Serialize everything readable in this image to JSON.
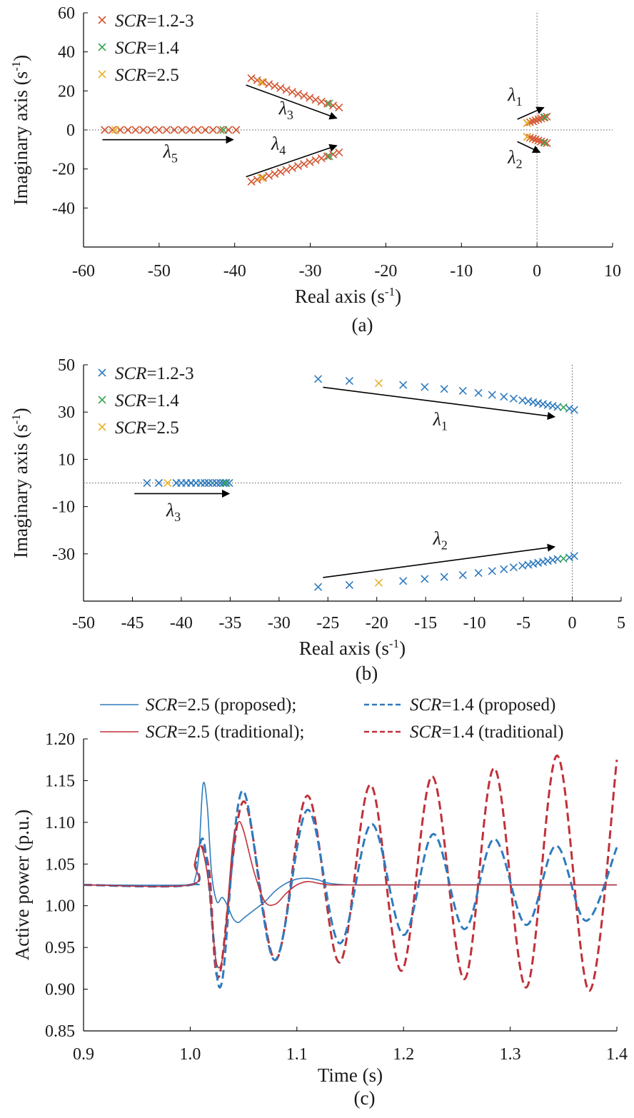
{
  "chart_data": [
    {
      "type": "scatter",
      "panel_label": "(a)",
      "xlabel": "Real axis (s",
      "xlabel_sup": "-1",
      "xlabel_close": ")",
      "ylabel": "Imaginary axis (s",
      "ylabel_sup": "-1",
      "ylabel_close": ")",
      "xlim": [
        -60,
        10
      ],
      "ylim": [
        -60,
        60
      ],
      "xticks": [
        -60,
        -50,
        -40,
        -30,
        -20,
        -10,
        0,
        10
      ],
      "yticks": [
        -40,
        -20,
        0,
        20,
        40,
        60
      ],
      "xtick_labels": [
        "-60",
        "-50",
        "-40",
        "-30",
        "-20",
        "-10",
        "0",
        "10"
      ],
      "ytick_labels": [
        "-40",
        "-20",
        "0",
        "20",
        "40",
        "60"
      ],
      "legend": [
        {
          "italic": "SCR",
          "rest": "=1.2-3",
          "color": "#d45530"
        },
        {
          "italic": "SCR",
          "rest": "=1.4",
          "color": "#3aa655"
        },
        {
          "italic": "SCR",
          "rest": "=2.5",
          "color": "#e8b32a"
        }
      ],
      "series": [
        {
          "name": "SCR=1.2-3",
          "color": "#d45530",
          "groups": [
            {
              "from": [
                -57.2,
                0
              ],
              "to": [
                -39.8,
                0
              ],
              "n": 18
            },
            {
              "from": [
                -37.8,
                26.5
              ],
              "to": [
                -26.2,
                11.5
              ],
              "n": 16
            },
            {
              "from": [
                -37.8,
                -26.5
              ],
              "to": [
                -26.2,
                -11.5
              ],
              "n": 16
            },
            {
              "from": [
                -1.3,
                3.5
              ],
              "to": [
                1.3,
                6.8
              ],
              "n": 8
            },
            {
              "from": [
                -1.3,
                -3.5
              ],
              "to": [
                1.3,
                -6.8
              ],
              "n": 8
            }
          ]
        },
        {
          "name": "SCR=1.4",
          "color": "#3aa655",
          "points": [
            [
              -41.5,
              0
            ],
            [
              -27.5,
              13.5
            ],
            [
              -27.5,
              -13.5
            ],
            [
              1.0,
              6.5
            ],
            [
              1.0,
              -6.5
            ]
          ]
        },
        {
          "name": "SCR=2.5",
          "color": "#e8b32a",
          "points": [
            [
              -55.8,
              0
            ],
            [
              -36.5,
              24.5
            ],
            [
              -36.5,
              -24.5
            ],
            [
              -1.3,
              3.6
            ],
            [
              -1.3,
              -3.6
            ]
          ]
        }
      ],
      "arrows": [
        {
          "from": [
            -57.5,
            -5
          ],
          "to": [
            -40.2,
            -5
          ],
          "label": "λ",
          "sub": "5",
          "label_at": [
            -48.5,
            -14
          ]
        },
        {
          "from": [
            -38.5,
            23
          ],
          "to": [
            -26.5,
            6
          ],
          "label": "λ",
          "sub": "3",
          "label_at": [
            -33.2,
            8
          ]
        },
        {
          "from": [
            -38.5,
            -24
          ],
          "to": [
            -26.5,
            -8
          ],
          "label": "λ",
          "sub": "4",
          "label_at": [
            -34.2,
            -10
          ]
        },
        {
          "from": [
            -2.6,
            5.5
          ],
          "to": [
            0.9,
            11.5
          ],
          "label": "λ",
          "sub": "1",
          "label_at": [
            -2.9,
            15
          ]
        },
        {
          "from": [
            -2.6,
            -6
          ],
          "to": [
            0.4,
            -11.5
          ],
          "label": "λ",
          "sub": "2",
          "label_at": [
            -2.9,
            -17
          ]
        }
      ]
    },
    {
      "type": "scatter",
      "panel_label": "(b)",
      "xlabel": "Real axis (s",
      "xlabel_sup": "-1",
      "xlabel_close": ")",
      "ylabel": "Imaginary axis (s",
      "ylabel_sup": "-1",
      "ylabel_close": ")",
      "xlim": [
        -50,
        5
      ],
      "ylim": [
        -50,
        50
      ],
      "xticks": [
        -50,
        -45,
        -40,
        -35,
        -30,
        -25,
        -20,
        -15,
        -10,
        -5,
        0,
        5
      ],
      "yticks": [
        -30,
        -10,
        10,
        30,
        50
      ],
      "xtick_labels": [
        "-50",
        "-45",
        "-40",
        "-35",
        "-30",
        "-25",
        "-20",
        "-15",
        "-10",
        "-5",
        "0",
        "5"
      ],
      "ytick_labels": [
        "-30",
        "-10",
        "10",
        "30",
        "50"
      ],
      "legend": [
        {
          "italic": "SCR",
          "rest": "=1.2-3",
          "color": "#2e7bbf"
        },
        {
          "italic": "SCR",
          "rest": "=1.4",
          "color": "#3aa655"
        },
        {
          "italic": "SCR",
          "rest": "=2.5",
          "color": "#e8b32a"
        }
      ],
      "series": [
        {
          "name": "SCR=1.2-3",
          "color": "#2e7bbf",
          "points": [
            [
              -26,
              44
            ],
            [
              -22.8,
              43.2
            ],
            [
              -17.3,
              41.5
            ],
            [
              -15.1,
              40.6
            ],
            [
              -13.1,
              39.8
            ],
            [
              -11.2,
              39.0
            ],
            [
              -9.6,
              38.1
            ],
            [
              -8.2,
              37.3
            ],
            [
              -7.0,
              36.5
            ],
            [
              -6.0,
              35.7
            ],
            [
              -5.1,
              35.0
            ],
            [
              -4.5,
              34.6
            ],
            [
              -4.0,
              34.2
            ],
            [
              -3.5,
              33.8
            ],
            [
              -3.0,
              33.4
            ],
            [
              -2.5,
              33.0
            ],
            [
              -2.0,
              32.6
            ],
            [
              -1.5,
              32.2
            ],
            [
              -0.3,
              31.5
            ],
            [
              0.2,
              30.9
            ],
            [
              -26,
              -44
            ],
            [
              -22.8,
              -43.2
            ],
            [
              -17.3,
              -41.5
            ],
            [
              -15.1,
              -40.6
            ],
            [
              -13.1,
              -39.8
            ],
            [
              -11.2,
              -39.0
            ],
            [
              -9.6,
              -38.1
            ],
            [
              -8.2,
              -37.3
            ],
            [
              -7.0,
              -36.5
            ],
            [
              -6.0,
              -35.7
            ],
            [
              -5.1,
              -35.0
            ],
            [
              -4.5,
              -34.6
            ],
            [
              -4.0,
              -34.2
            ],
            [
              -3.5,
              -33.8
            ],
            [
              -3.0,
              -33.4
            ],
            [
              -2.5,
              -33.0
            ],
            [
              -2.0,
              -32.6
            ],
            [
              -1.5,
              -32.2
            ],
            [
              -0.3,
              -31.5
            ],
            [
              0.2,
              -30.9
            ],
            [
              -43.5,
              0
            ],
            [
              -42.3,
              0
            ],
            [
              -40.5,
              0
            ],
            [
              -40.0,
              0
            ],
            [
              -39.5,
              0
            ],
            [
              -39.0,
              0
            ],
            [
              -38.5,
              0
            ],
            [
              -38.0,
              0
            ],
            [
              -37.6,
              0
            ],
            [
              -37.2,
              0
            ],
            [
              -36.8,
              0
            ],
            [
              -36.4,
              0
            ],
            [
              -36.0,
              0
            ],
            [
              -35.7,
              0
            ],
            [
              -35.4,
              0
            ],
            [
              -35.1,
              0
            ]
          ]
        },
        {
          "name": "SCR=1.4",
          "color": "#3aa655",
          "points": [
            [
              -0.9,
              32.0
            ],
            [
              -0.9,
              -32.0
            ],
            [
              -35.5,
              0
            ]
          ]
        },
        {
          "name": "SCR=2.5",
          "color": "#e8b32a",
          "points": [
            [
              -19.8,
              42.2
            ],
            [
              -19.8,
              -42.2
            ],
            [
              -41.4,
              0
            ]
          ]
        }
      ],
      "arrows": [
        {
          "from": [
            -25.5,
            40.5
          ],
          "to": [
            -1.8,
            28
          ],
          "label": "λ",
          "sub": "1",
          "label_at": [
            -13.5,
            24.5
          ]
        },
        {
          "from": [
            -25.5,
            -40
          ],
          "to": [
            -1.8,
            -27
          ],
          "label": "λ",
          "sub": "2",
          "label_at": [
            -13.5,
            -26
          ]
        },
        {
          "from": [
            -44.8,
            -4.5
          ],
          "to": [
            -35.1,
            -4.5
          ],
          "label": "λ",
          "sub": "3",
          "label_at": [
            -40.8,
            -14
          ]
        }
      ]
    },
    {
      "type": "line",
      "panel_label": "(c)",
      "xlabel": "Time (s)",
      "ylabel": "Active power (p.u.)",
      "xlim": [
        0.9,
        1.4
      ],
      "ylim": [
        0.85,
        1.2
      ],
      "xticks": [
        0.9,
        1.0,
        1.1,
        1.2,
        1.3,
        1.4
      ],
      "yticks": [
        0.85,
        0.9,
        0.95,
        1.0,
        1.05,
        1.1,
        1.15,
        1.2
      ],
      "xtick_labels": [
        "0.9",
        "1.0",
        "1.1",
        "1.2",
        "1.3",
        "1.4"
      ],
      "ytick_labels": [
        "0.85",
        "0.90",
        "0.95",
        "1.00",
        "1.05",
        "1.10",
        "1.15",
        "1.20"
      ],
      "legend": [
        {
          "italic": "SCR",
          "rest": "=2.5 (proposed);",
          "color": "#2e7bbf",
          "dashed": false
        },
        {
          "italic": "SCR",
          "rest": "=1.4 (proposed)",
          "color": "#2e7bbf",
          "dashed": true
        },
        {
          "italic": "SCR",
          "rest": "=2.5 (traditional);",
          "color": "#c0313a",
          "dashed": false
        },
        {
          "italic": "SCR",
          "rest": "=1.4 (traditional)",
          "color": "#c0313a",
          "dashed": true
        }
      ],
      "series": [
        {
          "name": "SCR=2.5 (proposed)",
          "color": "#2e7bbf",
          "dashed": false,
          "x": [
            0.9,
            1.0,
            1.004,
            1.008,
            1.012,
            1.016,
            1.02,
            1.025,
            1.03,
            1.035,
            1.04,
            1.045,
            1.05,
            1.06,
            1.07,
            1.08,
            1.09,
            1.1,
            1.11,
            1.12,
            1.13,
            1.15,
            1.2,
            1.3,
            1.4
          ],
          "y": [
            1.025,
            1.025,
            1.03,
            1.06,
            1.145,
            1.12,
            1.04,
            1.005,
            1.01,
            1.0,
            0.985,
            0.98,
            0.985,
            0.995,
            1.005,
            1.018,
            1.027,
            1.032,
            1.033,
            1.031,
            1.027,
            1.025,
            1.025,
            1.025,
            1.025
          ]
        },
        {
          "name": "SCR=2.5 (traditional)",
          "color": "#c0313a",
          "dashed": false,
          "x": [
            0.9,
            1.0,
            1.004,
            1.008,
            1.012,
            1.018,
            1.024,
            1.03,
            1.035,
            1.04,
            1.045,
            1.05,
            1.06,
            1.07,
            1.08,
            1.09,
            1.1,
            1.11,
            1.12,
            1.13,
            1.15,
            1.2,
            1.3,
            1.4
          ],
          "y": [
            1.025,
            1.025,
            1.05,
            1.07,
            1.065,
            1.02,
            0.935,
            0.935,
            1.0,
            1.075,
            1.1,
            1.09,
            1.04,
            1.005,
            1.002,
            1.015,
            1.025,
            1.029,
            1.027,
            1.025,
            1.025,
            1.025,
            1.025,
            1.025
          ]
        },
        {
          "name": "SCR=1.4 (proposed)",
          "color": "#2e7bbf",
          "dashed": true,
          "x": [
            0.9,
            1.0,
            1.005,
            1.012,
            1.018,
            1.022,
            1.03,
            1.049,
            1.079,
            1.11,
            1.14,
            1.17,
            1.2,
            1.228,
            1.257,
            1.285,
            1.315,
            1.343,
            1.371,
            1.4
          ],
          "y": [
            1.025,
            1.025,
            1.05,
            1.08,
            1.02,
            0.96,
            0.91,
            1.138,
            0.935,
            1.115,
            0.955,
            1.098,
            0.965,
            1.086,
            0.972,
            1.08,
            0.977,
            1.072,
            0.982,
            1.07
          ]
        },
        {
          "name": "SCR=1.4 (traditional)",
          "color": "#c0313a",
          "dashed": true,
          "x": [
            0.9,
            1.0,
            1.005,
            1.01,
            1.018,
            1.027,
            1.05,
            1.08,
            1.11,
            1.14,
            1.169,
            1.198,
            1.227,
            1.257,
            1.285,
            1.315,
            1.344,
            1.374,
            1.4
          ],
          "y": [
            1.025,
            1.025,
            1.05,
            1.072,
            1.04,
            0.915,
            1.125,
            0.935,
            1.132,
            0.932,
            1.145,
            0.922,
            1.155,
            0.912,
            1.165,
            0.902,
            1.18,
            0.898,
            1.175
          ]
        }
      ]
    }
  ]
}
